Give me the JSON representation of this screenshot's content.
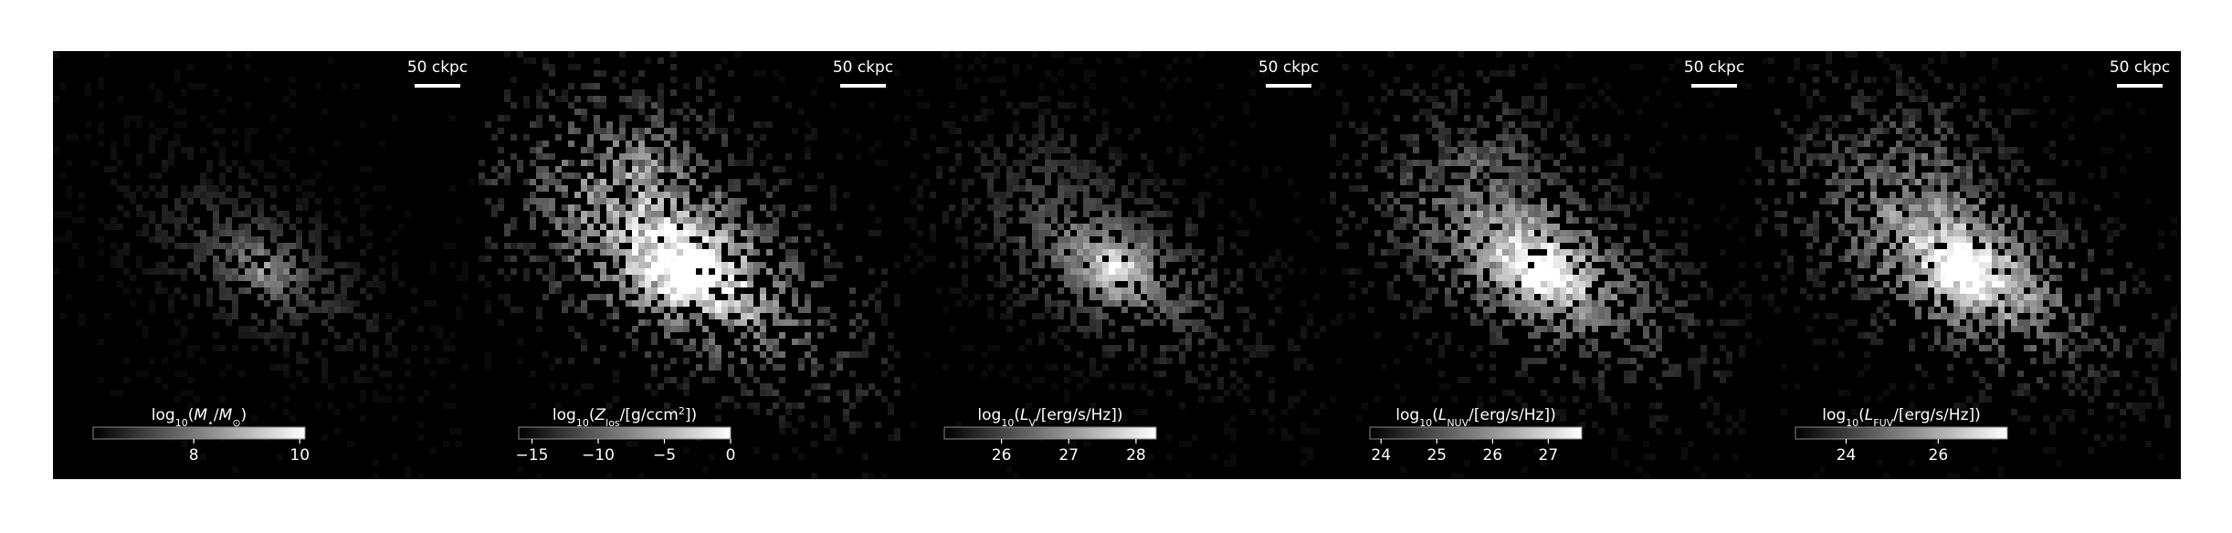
{
  "chart_data": {
    "type": "image",
    "panels": [
      {
        "scalebar": "50 ckpc",
        "colorbar": {
          "label": [
            {
              "text": "log"
            },
            {
              "text": "10",
              "sub": true
            },
            {
              "text": "("
            },
            {
              "text": "M",
              "italic": true
            },
            {
              "text": "⋆",
              "sub": true
            },
            {
              "text": "/"
            },
            {
              "text": "M",
              "italic": true
            },
            {
              "text": "⊙",
              "sub": true
            },
            {
              "text": ")"
            }
          ],
          "clim": [
            6.1,
            10.1
          ],
          "ticks": [
            8,
            10
          ],
          "cmap": [
            "#000000",
            "#ffffff"
          ]
        }
      },
      {
        "scalebar": "50 ckpc",
        "colorbar": {
          "label": [
            {
              "text": "log"
            },
            {
              "text": "10",
              "sub": true
            },
            {
              "text": "("
            },
            {
              "text": "Z",
              "italic": true
            },
            {
              "text": "los",
              "sub": true
            },
            {
              "text": "/[g/ccm"
            },
            {
              "text": "2",
              "sup": true
            },
            {
              "text": "])"
            }
          ],
          "clim": [
            -16,
            0
          ],
          "ticks": [
            {
              "value": -15,
              "label": "−15"
            },
            {
              "value": -10,
              "label": "−10"
            },
            {
              "value": -5,
              "label": "−5"
            },
            0
          ],
          "cmap": [
            "#000000",
            "#ffffff"
          ]
        }
      },
      {
        "scalebar": "50 ckpc",
        "colorbar": {
          "label": [
            {
              "text": "log"
            },
            {
              "text": "10",
              "sub": true
            },
            {
              "text": "("
            },
            {
              "text": "L",
              "italic": true
            },
            {
              "text": "V",
              "sub": true
            },
            {
              "text": "/[erg/s/Hz])"
            }
          ],
          "clim": [
            25.15,
            28.3
          ],
          "ticks": [
            26,
            27,
            28
          ],
          "cmap": [
            "#000000",
            "#ffffff"
          ]
        }
      },
      {
        "scalebar": "50 ckpc",
        "colorbar": {
          "label": [
            {
              "text": "log"
            },
            {
              "text": "10",
              "sub": true
            },
            {
              "text": "("
            },
            {
              "text": "L",
              "italic": true
            },
            {
              "text": "NUV",
              "sub": true
            },
            {
              "text": "/[erg/s/Hz])"
            }
          ],
          "clim": [
            23.8,
            27.6
          ],
          "ticks": [
            24,
            25,
            26,
            27
          ],
          "cmap": [
            "#000000",
            "#ffffff"
          ]
        }
      },
      {
        "scalebar": "50 ckpc",
        "colorbar": {
          "label": [
            {
              "text": "log"
            },
            {
              "text": "10",
              "sub": true
            },
            {
              "text": "("
            },
            {
              "text": "L",
              "italic": true
            },
            {
              "text": "FUV",
              "sub": true
            },
            {
              "text": "/[erg/s/Hz])"
            }
          ],
          "clim": [
            22.9,
            27.5
          ],
          "ticks": [
            24,
            26
          ],
          "cmap": [
            "#000000",
            "#ffffff"
          ]
        }
      }
    ]
  }
}
